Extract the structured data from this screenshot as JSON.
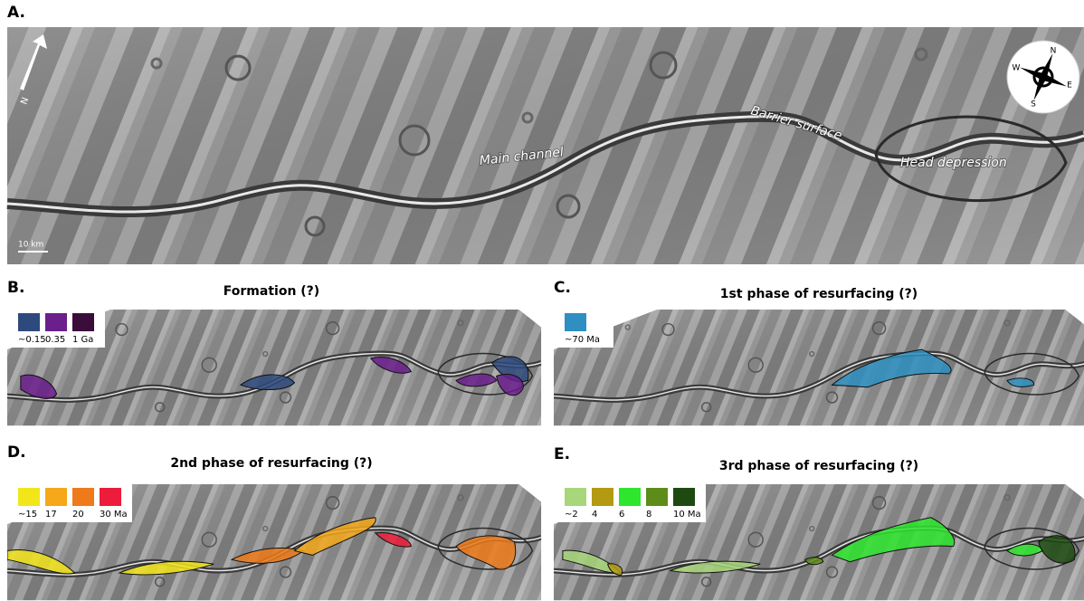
{
  "panels": {
    "a": {
      "label": "A.",
      "north": "N",
      "scale": "10 km",
      "compass": {
        "n": "N",
        "e": "E",
        "s": "S",
        "w": "W"
      },
      "annotations": [
        "Main channel",
        "Barrier surface",
        "Head depression"
      ]
    },
    "b": {
      "label": "B.",
      "title": "Formation (?)",
      "legend": [
        {
          "label": "~0.15",
          "color": "#2e4a7d"
        },
        {
          "label": "0.35",
          "color": "#6b1f8c"
        },
        {
          "label": "1 Ga",
          "color": "#3b0d3b"
        }
      ]
    },
    "c": {
      "label": "C.",
      "title": "1st phase of resurfacing (?)",
      "legend": [
        {
          "label": "~70 Ma",
          "color": "#2e8fc0"
        }
      ]
    },
    "d": {
      "label": "D.",
      "title": "2nd phase of resurfacing (?)",
      "legend": [
        {
          "label": "~15",
          "color": "#f2e51a"
        },
        {
          "label": "17",
          "color": "#f4a81a"
        },
        {
          "label": "20",
          "color": "#ee7a1a"
        },
        {
          "label": "30 Ma",
          "color": "#ec1c3a"
        }
      ]
    },
    "e": {
      "label": "E.",
      "title": "3rd phase of resurfacing (?)",
      "legend": [
        {
          "label": "~2",
          "color": "#a8d67a"
        },
        {
          "label": "4",
          "color": "#b39a12"
        },
        {
          "label": "6",
          "color": "#2ee62e"
        },
        {
          "label": "8",
          "color": "#5e8c1a"
        },
        {
          "label": "10 Ma",
          "color": "#1e4a12"
        }
      ]
    }
  }
}
